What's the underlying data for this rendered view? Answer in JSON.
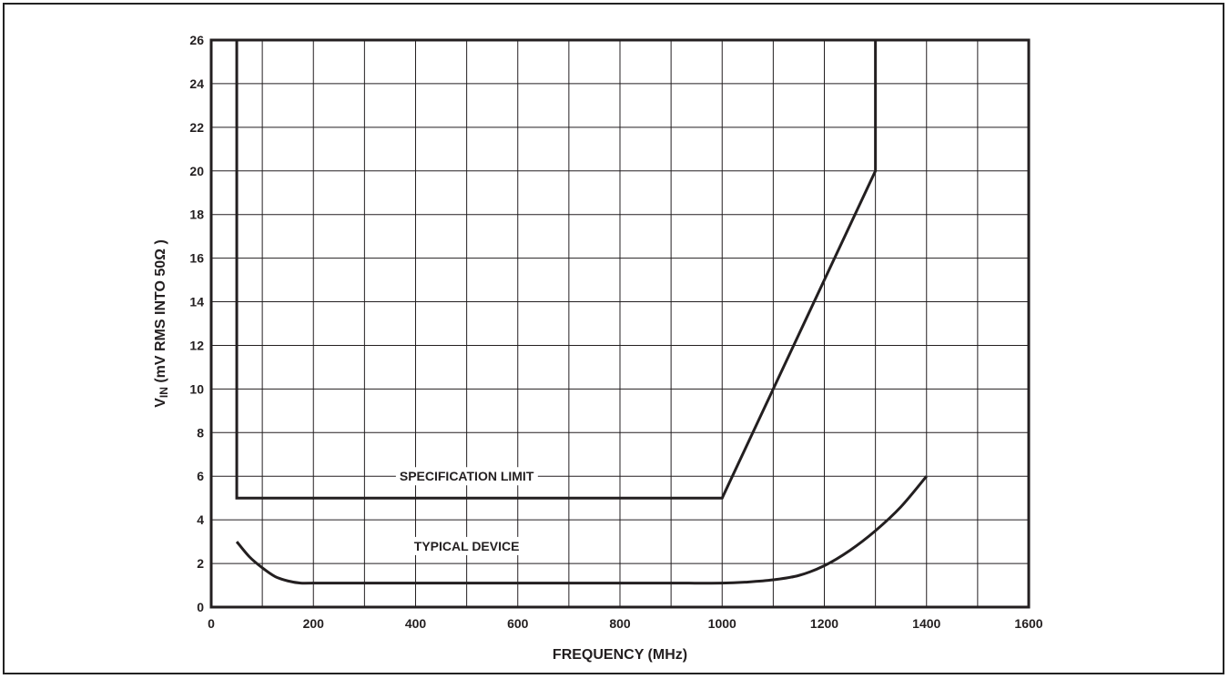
{
  "chart_data": {
    "type": "line",
    "xlabel": "FREQUENCY (MHz)",
    "ylabel": "V",
    "ylabel_subscript": "IN",
    "ylabel_rest": " (mV RMS INTO 50Ω )",
    "xlim": [
      0,
      1600
    ],
    "ylim": [
      0,
      26
    ],
    "x_ticks": [
      0,
      200,
      400,
      600,
      800,
      1000,
      1200,
      1400,
      1600
    ],
    "y_ticks": [
      0,
      2,
      4,
      6,
      8,
      10,
      12,
      14,
      16,
      18,
      20,
      22,
      24,
      26
    ],
    "x_tick_labels": [
      "0",
      "200",
      "400",
      "600",
      "800",
      "1000",
      "1200",
      "1400",
      "1600"
    ],
    "y_tick_labels": [
      "0",
      "2",
      "4",
      "6",
      "8",
      "10",
      "12",
      "14",
      "16",
      "18",
      "20",
      "22",
      "24",
      "26"
    ],
    "grid": true,
    "grid_x_step": 100,
    "grid_y_step": 2,
    "series": [
      {
        "name": "SPECIFICATION LIMIT",
        "x": [
          50,
          50,
          1000,
          1300,
          1300
        ],
        "y": [
          26,
          5,
          5,
          20,
          26
        ]
      },
      {
        "name": "TYPICAL DEVICE",
        "x": [
          50,
          75,
          100,
          125,
          150,
          175,
          200,
          300,
          400,
          500,
          600,
          700,
          800,
          900,
          1000,
          1050,
          1100,
          1150,
          1200,
          1250,
          1300,
          1350,
          1400
        ],
        "y": [
          3.0,
          2.3,
          1.8,
          1.4,
          1.2,
          1.1,
          1.1,
          1.1,
          1.1,
          1.1,
          1.1,
          1.1,
          1.1,
          1.1,
          1.1,
          1.15,
          1.25,
          1.45,
          1.9,
          2.6,
          3.5,
          4.6,
          6.0
        ]
      }
    ],
    "annotations": [
      {
        "text": "SPECIFICATION LIMIT",
        "x": 500,
        "y": 6
      },
      {
        "text": "TYPICAL DEVICE",
        "x": 500,
        "y": 2.8
      }
    ]
  }
}
